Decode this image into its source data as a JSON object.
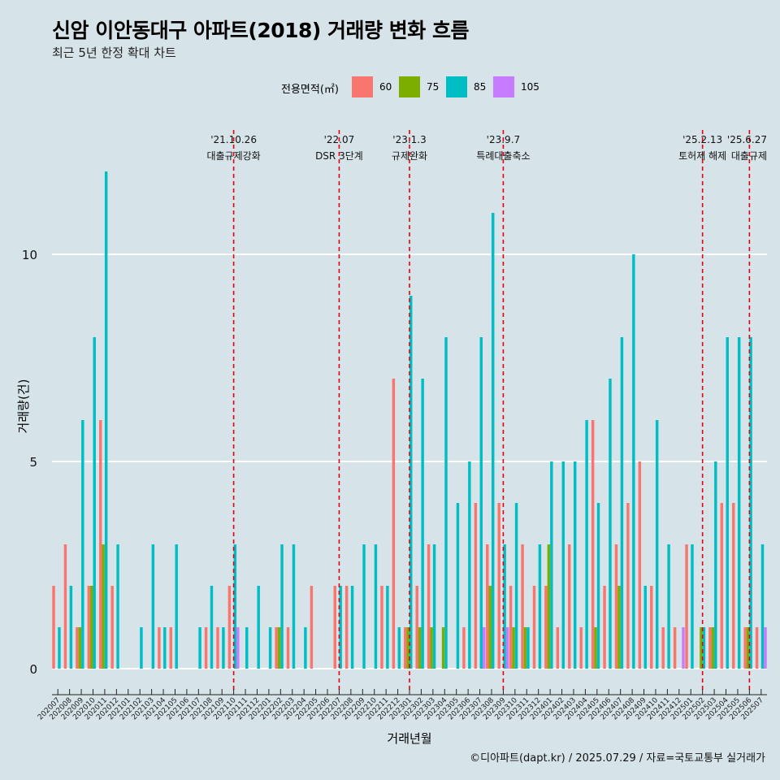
{
  "title": "신암 이안동대구 아파트(2018) 거래량 변화 흐름",
  "subtitle": "최근 5년 한정 확대 차트",
  "caption": "©디아파트(dapt.kr) / 2025.07.29 / 자료=국토교통부 실거래가",
  "legend": {
    "title": "전용면적(㎡)",
    "items": [
      {
        "label": "60",
        "color": "#f8766d"
      },
      {
        "label": "75",
        "color": "#7cae00"
      },
      {
        "label": "85",
        "color": "#00bfc4"
      },
      {
        "label": "105",
        "color": "#c77cff"
      }
    ]
  },
  "chart_data": {
    "type": "bar",
    "title": "신암 이안동대구 아파트(2018) 거래량 변화 흐름",
    "xlabel": "거래년월",
    "ylabel": "거래량(건)",
    "ylim": [
      0,
      12.5
    ],
    "yticks": [
      0,
      5,
      10
    ],
    "grid": true,
    "legend_position": "top",
    "categories": [
      "202007",
      "202008",
      "202009",
      "202010",
      "202011",
      "202012",
      "202101",
      "202102",
      "202103",
      "202104",
      "202105",
      "202106",
      "202107",
      "202108",
      "202109",
      "202110",
      "202111",
      "202112",
      "202201",
      "202202",
      "202203",
      "202204",
      "202205",
      "202206",
      "202207",
      "202208",
      "202209",
      "202210",
      "202211",
      "202212",
      "202301",
      "202302",
      "202303",
      "202304",
      "202305",
      "202306",
      "202307",
      "202308",
      "202309",
      "202310",
      "202311",
      "202312",
      "202401",
      "202402",
      "202403",
      "202404",
      "202405",
      "202406",
      "202407",
      "202408",
      "202409",
      "202410",
      "202411",
      "202412",
      "202501",
      "202502",
      "202503",
      "202504",
      "202505",
      "202506",
      "202507"
    ],
    "series": [
      {
        "name": "60",
        "color": "#f8766d",
        "values": [
          2,
          3,
          1,
          2,
          6,
          2,
          0,
          0,
          0,
          1,
          1,
          0,
          0,
          1,
          1,
          2,
          0,
          0,
          0,
          1,
          1,
          0,
          2,
          0,
          2,
          2,
          0,
          0,
          2,
          7,
          1,
          2,
          3,
          0,
          0,
          1,
          4,
          3,
          4,
          2,
          3,
          2,
          2,
          1,
          3,
          1,
          6,
          2,
          3,
          4,
          5,
          2,
          1,
          1,
          3,
          0,
          1,
          4,
          4,
          1,
          1
        ]
      },
      {
        "name": "75",
        "color": "#7cae00",
        "values": [
          0,
          0,
          1,
          2,
          3,
          0,
          0,
          0,
          0,
          0,
          0,
          0,
          0,
          0,
          0,
          0,
          0,
          0,
          0,
          1,
          0,
          0,
          0,
          0,
          0,
          0,
          0,
          0,
          0,
          0,
          1,
          1,
          1,
          1,
          0,
          0,
          0,
          2,
          0,
          1,
          1,
          0,
          3,
          0,
          0,
          0,
          1,
          0,
          2,
          0,
          0,
          0,
          0,
          0,
          0,
          1,
          1,
          0,
          0,
          1,
          0
        ]
      },
      {
        "name": "85",
        "color": "#00bfc4",
        "values": [
          1,
          2,
          6,
          8,
          12,
          3,
          0,
          1,
          3,
          1,
          3,
          0,
          1,
          2,
          1,
          3,
          1,
          2,
          1,
          3,
          3,
          1,
          0,
          0,
          2,
          2,
          3,
          3,
          2,
          1,
          9,
          7,
          3,
          8,
          4,
          5,
          8,
          11,
          3,
          4,
          1,
          3,
          5,
          5,
          5,
          6,
          4,
          7,
          8,
          10,
          2,
          6,
          3,
          0,
          3,
          1,
          5,
          8,
          8,
          8,
          3
        ]
      },
      {
        "name": "105",
        "color": "#c77cff",
        "values": [
          0,
          0,
          0,
          0,
          0,
          0,
          0,
          0,
          0,
          0,
          0,
          0,
          0,
          0,
          0,
          1,
          0,
          0,
          0,
          0,
          0,
          0,
          0,
          0,
          0,
          0,
          0,
          0,
          0,
          0,
          0,
          0,
          0,
          0,
          0,
          0,
          1,
          0,
          1,
          0,
          0,
          0,
          0,
          0,
          0,
          0,
          0,
          0,
          0,
          0,
          0,
          0,
          0,
          1,
          0,
          0,
          0,
          0,
          0,
          0,
          1
        ]
      }
    ],
    "annotations": [
      {
        "date": "'21.10.26",
        "text": "대출규제강화",
        "month": "202110"
      },
      {
        "date": "'22.07",
        "text": "DSR 3단계",
        "month": "202207"
      },
      {
        "date": "'23.1.3",
        "text": "규제완화",
        "month": "202301"
      },
      {
        "date": "'23.9.7",
        "text": "특례대출축소",
        "month": "202309"
      },
      {
        "date": "'25.2.13",
        "text": "토허제 해제",
        "month": "202502"
      },
      {
        "date": "'25.6.27",
        "text": "대출규제",
        "month": "202506"
      }
    ]
  }
}
